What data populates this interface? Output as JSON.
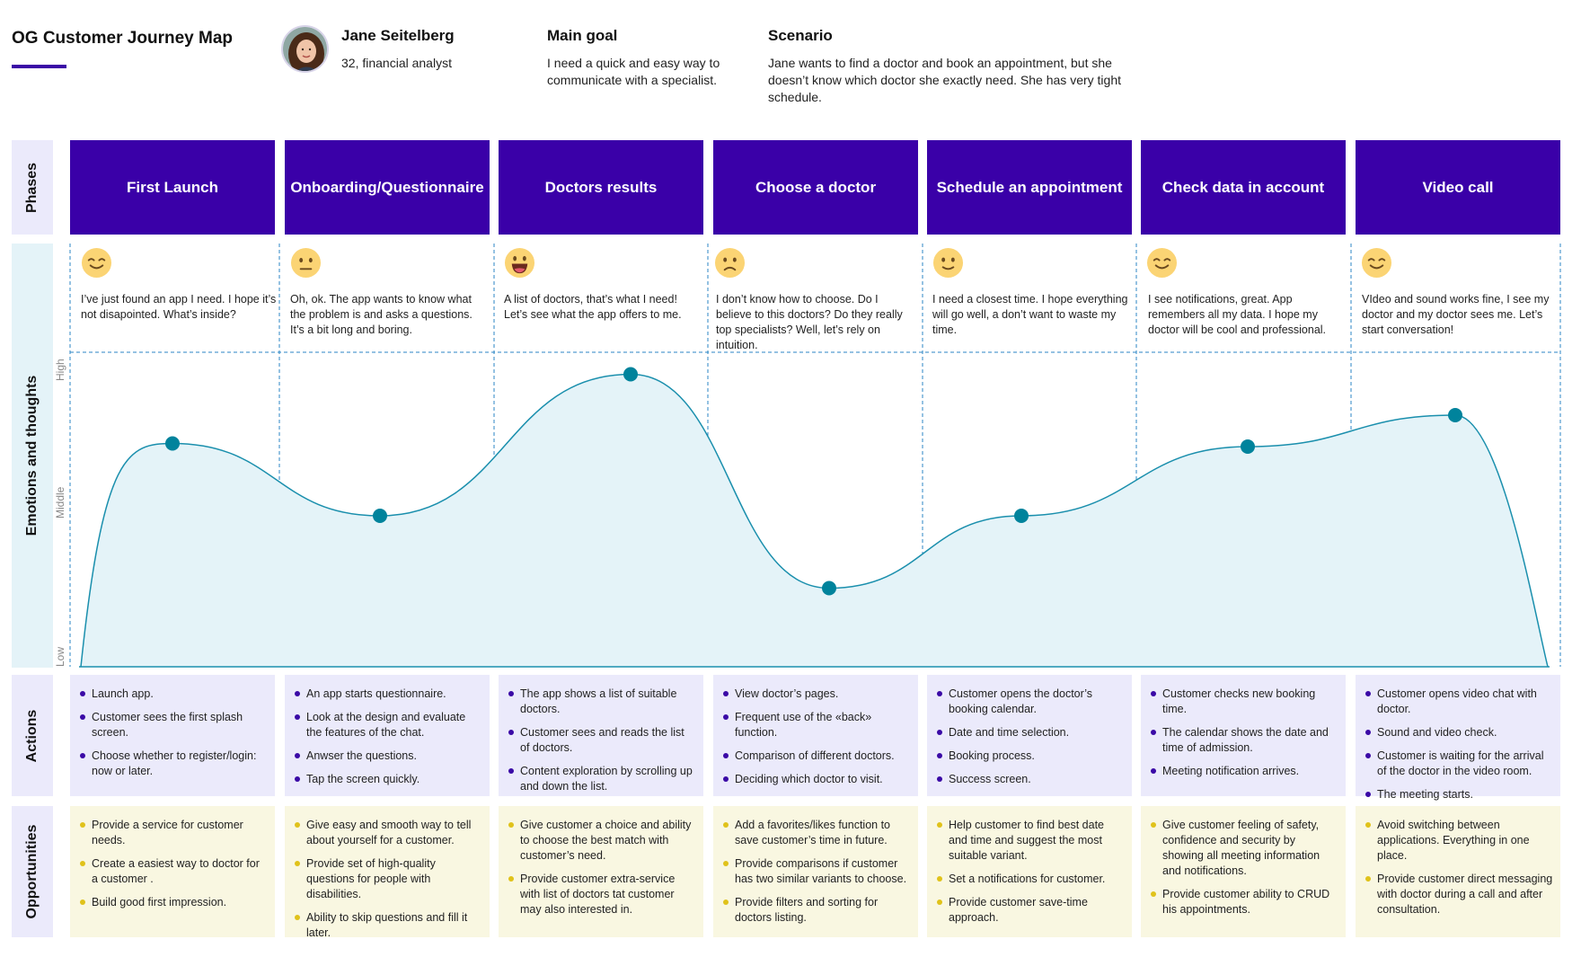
{
  "header": {
    "title": "OG Customer Journey Map",
    "persona_name": "Jane Seitelberg",
    "persona_desc": "32, financial analyst",
    "goal_label": "Main goal",
    "goal_text": "I need a quick and easy way to communicate with a specialist.",
    "scenario_label": "Scenario",
    "scenario_text": "Jane wants to find a doctor and book an appointment, but she doesn’t know which doctor she exactly need. She has very tight schedule."
  },
  "rows": {
    "phases": "Phases",
    "emotions": "Emotions and thoughts",
    "actions": "Actions",
    "opportunities": "Opportunities"
  },
  "levels": {
    "high": "High",
    "middle": "Middle",
    "low": "Low"
  },
  "colors": {
    "phase": "#3a00a8",
    "curve": "#1a8fad",
    "dot": "#00839c",
    "actions_bg": "#ebeafb",
    "opportunities_bg": "#f9f7e1"
  },
  "phases": [
    {
      "title": "First Launch",
      "emoji": "smiling-face-icon",
      "thought": "I’ve just found an app I need. I hope it’s not disapointed. What’s inside?",
      "actions": [
        "Launch app.",
        "Customer sees the first splash screen.",
        "Choose whether to register/login: now or later."
      ],
      "opportunities": [
        "Provide a service for customer needs.",
        "Create a easiest way to doctor for a customer .",
        "Build good first impression."
      ]
    },
    {
      "title": "Onboarding/Questionnaire",
      "emoji": "neutral-face-icon",
      "thought": "Oh, ok. The app wants to know what the problem is and asks a questions. It’s a bit long and boring.",
      "actions": [
        "An app starts questionnaire.",
        "Look at the design and evaluate the features of the chat.",
        "Anwser the questions.",
        "Tap the screen quickly."
      ],
      "opportunities": [
        "Give easy and smooth way to tell about yourself for a customer.",
        "Provide set of high-quality questions for people with disabilities.",
        "Ability to skip questions and fill it later."
      ]
    },
    {
      "title": "Doctors results",
      "emoji": "grinning-face-icon",
      "thought": "A list of doctors, that’s what I need! Let’s see what the app offers to me.",
      "actions": [
        "The app shows a list of suitable doctors.",
        "Customer sees and reads the list of doctors.",
        "Content exploration by scrolling up and down the list."
      ],
      "opportunities": [
        "Give customer a choice and ability to choose the best match with customer’s need.",
        "Provide customer extra-service with list of doctors tat customer may also interested in."
      ]
    },
    {
      "title": "Choose a doctor",
      "emoji": "frowning-face-icon",
      "thought": "I don’t know how to choose. Do I believe to this doctors? Do they really top specialists? Well, let’s rely on intuition.",
      "actions": [
        "View doctor’s pages.",
        "Frequent use of the «back» function.",
        "Comparison of different doctors.",
        "Deciding which doctor to visit."
      ],
      "opportunities": [
        "Add a favorites/likes function to save customer’s time in future.",
        "Provide comparisons if customer has two similar variants to choose.",
        "Provide filters and sorting for doctors listing."
      ]
    },
    {
      "title": "Schedule an appointment",
      "emoji": "slight-smile-face-icon",
      "thought": "I need a closest time. I hope everything will go well, a don’t want to waste my time.",
      "actions": [
        "Customer opens the doctor’s booking calendar.",
        "Date and time selection.",
        "Booking process.",
        "Success screen."
      ],
      "opportunities": [
        "Help customer to find best date and time and suggest  the most suitable variant.",
        "Set a notifications for customer.",
        "Provide customer save-time approach."
      ]
    },
    {
      "title": "Check data in account",
      "emoji": "smiling-face-icon",
      "thought": "I see notifications, great. App remembers all my data. I hope my doctor will be cool and professional.",
      "actions": [
        "Customer checks new booking time.",
        "The calendar shows the date and time of admission.",
        "Meeting notification arrives."
      ],
      "opportunities": [
        "Give customer feeling of safety, confidence and security by showing all meeting information and notifications.",
        "Provide customer ability to CRUD his appointments."
      ]
    },
    {
      "title": "Video call",
      "emoji": "smiling-face-icon",
      "thought": "VIdeo and sound works fine, I see my doctor and my doctor sees me. Let’s start conversation!",
      "actions": [
        "Customer opens video chat with doctor.",
        "Sound and video check.",
        "Customer is waiting for the arrival of the doctor in the video room.",
        "The meeting starts."
      ],
      "opportunities": [
        "Avoid switching between applications. Everything in one place.",
        "Provide customer direct messaging with doctor during a call and after consultation."
      ]
    }
  ],
  "chart_data": {
    "type": "line",
    "categories": [
      "First Launch",
      "Onboarding/Questionnaire",
      "Doctors results",
      "Choose a doctor",
      "Schedule an appointment",
      "Check data in account",
      "Video call"
    ],
    "values": [
      0.71,
      0.48,
      0.93,
      0.25,
      0.48,
      0.7,
      0.8
    ],
    "ylabel_levels": [
      "Low",
      "Middle",
      "High"
    ],
    "ylim": [
      0,
      1
    ]
  }
}
